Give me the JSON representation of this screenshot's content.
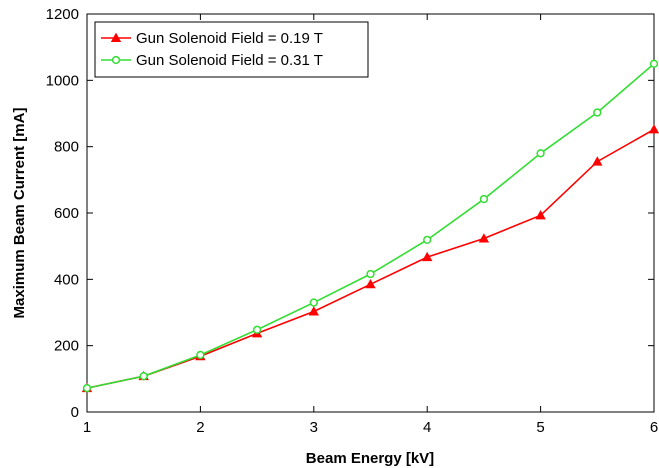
{
  "chart_data": {
    "type": "line",
    "title": "",
    "xlabel": "Beam Energy [kV]",
    "ylabel": "Maximum Beam Current [mA]",
    "xlim": [
      1,
      6
    ],
    "ylim": [
      0,
      1200
    ],
    "xticks": [
      1,
      2,
      3,
      4,
      5,
      6
    ],
    "yticks": [
      0,
      200,
      400,
      600,
      800,
      1000,
      1200
    ],
    "grid": false,
    "legend_position": "top-left",
    "x": [
      1,
      1.5,
      2,
      2.5,
      3,
      3.5,
      4,
      4.5,
      5,
      5.5,
      6
    ],
    "series": [
      {
        "name": "Gun Solenoid Field = 0.19 T",
        "color": "#ff0000",
        "marker": "triangle",
        "values": [
          72,
          108,
          168,
          237,
          303,
          385,
          467,
          523,
          593,
          755,
          852
        ]
      },
      {
        "name": "Gun Solenoid Field = 0.31 T",
        "color": "#33dd33",
        "marker": "circle",
        "values": [
          72,
          108,
          172,
          248,
          330,
          416,
          519,
          642,
          780,
          903,
          1050
        ]
      }
    ]
  }
}
